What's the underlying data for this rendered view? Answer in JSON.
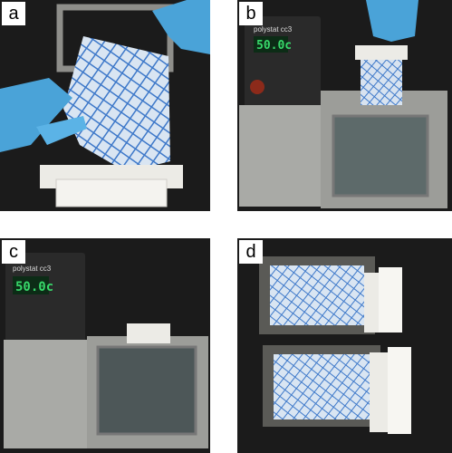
{
  "figure": {
    "panels": [
      {
        "label": "a"
      },
      {
        "label": "b"
      },
      {
        "label": "c"
      },
      {
        "label": "d"
      }
    ]
  },
  "device": {
    "brand": "polystat cc3",
    "display": "50.0c"
  },
  "colors": {
    "background_dark": "#1b1b1b",
    "glove": "#4aa3d8",
    "mesh_blue": "#3d78c9",
    "steel": "#a9aaa6",
    "teflon_white": "#ecebe6",
    "lcd_green": "#38d86a"
  }
}
